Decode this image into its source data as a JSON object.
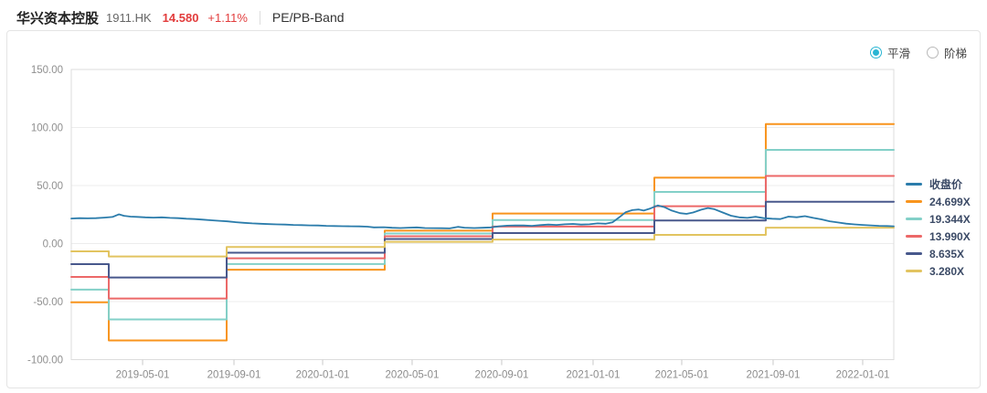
{
  "header": {
    "title": "华兴资本控股",
    "ticker": "1911.HK",
    "price": "14.580",
    "change": "+1.11%",
    "view_label": "PE/PB-Band"
  },
  "controls": {
    "smooth_label": "平滑",
    "step_label": "阶梯",
    "selected": "平滑",
    "active_color": "#29b5d3"
  },
  "legend": {
    "items": [
      {
        "label": "收盘价",
        "color": "#2b7cab"
      },
      {
        "label": "24.699X",
        "color": "#f8941d"
      },
      {
        "label": "19.344X",
        "color": "#83d0c8"
      },
      {
        "label": "13.990X",
        "color": "#ec6868"
      },
      {
        "label": "8.635X",
        "color": "#48588c"
      },
      {
        "label": "3.280X",
        "color": "#e2c460"
      }
    ]
  },
  "chart_data": {
    "type": "line",
    "title": "PE/PB-Band",
    "grid": true,
    "legend_position": "right",
    "y_axis": {
      "min": -100,
      "max": 150,
      "tick_values": [
        150,
        100,
        50,
        0,
        -50,
        -100
      ],
      "tick_labels": [
        "150.00",
        "100.00",
        "50.00",
        "0.00",
        "-50.00",
        "-100.00"
      ]
    },
    "x_axis": {
      "ticks": [
        {
          "label": "2019-05-01",
          "pos": 8.67
        },
        {
          "label": "2019-09-01",
          "pos": 19.78
        },
        {
          "label": "2020-01-01",
          "pos": 30.56
        },
        {
          "label": "2020-05-01",
          "pos": 41.44
        },
        {
          "label": "2020-09-01",
          "pos": 52.33
        },
        {
          "label": "2021-01-01",
          "pos": 63.44
        },
        {
          "label": "2021-05-01",
          "pos": 74.22
        },
        {
          "label": "2021-09-01",
          "pos": 85.33
        },
        {
          "label": "2022-01-01",
          "pos": 96.22
        }
      ]
    },
    "bands": {
      "segment_bounds_pct": [
        0,
        4.56,
        18.89,
        38.11,
        51.22,
        70.89,
        84.44,
        100
      ],
      "series": [
        {
          "name": "24.699X",
          "color": "#f8941d",
          "values": [
            -50.6,
            -83.5,
            -22.5,
            11.1,
            25.9,
            56.8,
            103.0
          ]
        },
        {
          "name": "19.344X",
          "color": "#83d0c8",
          "values": [
            -39.7,
            -65.4,
            -17.6,
            8.7,
            20.3,
            44.5,
            80.7
          ]
        },
        {
          "name": "13.990X",
          "color": "#ec6868",
          "values": [
            -28.7,
            -47.3,
            -12.7,
            6.3,
            14.7,
            32.2,
            58.3
          ]
        },
        {
          "name": "8.635X",
          "color": "#48588c",
          "values": [
            -17.7,
            -29.2,
            -7.9,
            3.9,
            9.1,
            19.9,
            36.0
          ]
        },
        {
          "name": "3.280X",
          "color": "#e2c460",
          "values": [
            -6.7,
            -11.1,
            -3.0,
            1.5,
            3.4,
            7.5,
            13.7
          ]
        }
      ]
    },
    "close_series": {
      "name": "收盘价",
      "color": "#2b7cab",
      "points": [
        [
          0,
          21.6
        ],
        [
          1,
          21.9
        ],
        [
          2,
          21.7
        ],
        [
          3,
          21.9
        ],
        [
          4,
          22.4
        ],
        [
          5,
          22.9
        ],
        [
          5.8,
          25.2
        ],
        [
          6.4,
          23.9
        ],
        [
          7.2,
          23.2
        ],
        [
          8,
          23.0
        ],
        [
          9,
          22.6
        ],
        [
          10,
          22.4
        ],
        [
          11,
          22.6
        ],
        [
          12,
          22.1
        ],
        [
          13,
          21.9
        ],
        [
          14,
          21.4
        ],
        [
          15,
          21.1
        ],
        [
          16,
          20.6
        ],
        [
          17,
          20.1
        ],
        [
          18,
          19.6
        ],
        [
          19,
          19.1
        ],
        [
          20,
          18.4
        ],
        [
          21,
          17.9
        ],
        [
          22,
          17.4
        ],
        [
          23,
          17.1
        ],
        [
          24,
          16.8
        ],
        [
          25,
          16.5
        ],
        [
          26,
          16.4
        ],
        [
          27,
          16.1
        ],
        [
          28,
          15.9
        ],
        [
          29,
          15.7
        ],
        [
          30,
          15.6
        ],
        [
          31,
          15.3
        ],
        [
          32,
          15.1
        ],
        [
          33,
          15.0
        ],
        [
          34,
          14.9
        ],
        [
          35,
          14.8
        ],
        [
          36,
          14.6
        ],
        [
          36.8,
          13.9
        ],
        [
          38,
          14.1
        ],
        [
          39,
          13.6
        ],
        [
          40,
          13.4
        ],
        [
          41,
          13.7
        ],
        [
          42,
          13.9
        ],
        [
          43,
          13.4
        ],
        [
          44,
          13.3
        ],
        [
          45,
          13.2
        ],
        [
          46,
          13.1
        ],
        [
          47,
          14.4
        ],
        [
          47.8,
          13.7
        ],
        [
          49,
          13.4
        ],
        [
          50,
          13.6
        ],
        [
          51,
          13.9
        ],
        [
          52,
          14.9
        ],
        [
          53,
          15.4
        ],
        [
          54,
          15.7
        ],
        [
          55,
          15.6
        ],
        [
          56,
          15.3
        ],
        [
          57,
          15.9
        ],
        [
          58,
          16.4
        ],
        [
          59,
          16.1
        ],
        [
          60,
          16.6
        ],
        [
          61,
          16.9
        ],
        [
          62,
          16.4
        ],
        [
          63,
          16.6
        ],
        [
          64,
          17.4
        ],
        [
          65,
          17.1
        ],
        [
          65.8,
          18.3
        ],
        [
          66.6,
          22.5
        ],
        [
          67.4,
          27.0
        ],
        [
          68.2,
          28.8
        ],
        [
          69,
          29.4
        ],
        [
          69.6,
          28.4
        ],
        [
          70.4,
          30.2
        ],
        [
          71.3,
          32.8
        ],
        [
          72.1,
          31.4
        ],
        [
          73,
          28.4
        ],
        [
          74,
          26.2
        ],
        [
          74.8,
          25.6
        ],
        [
          75.6,
          26.8
        ],
        [
          76.6,
          29.2
        ],
        [
          77.4,
          30.6
        ],
        [
          78.2,
          29.6
        ],
        [
          79.2,
          26.8
        ],
        [
          80.2,
          24.0
        ],
        [
          81.2,
          22.6
        ],
        [
          82.2,
          22.1
        ],
        [
          83.2,
          23.1
        ],
        [
          84.2,
          21.9
        ],
        [
          85.2,
          21.4
        ],
        [
          86.2,
          21.1
        ],
        [
          87.2,
          23.2
        ],
        [
          88.2,
          22.7
        ],
        [
          89.2,
          23.6
        ],
        [
          90.2,
          22.1
        ],
        [
          91.2,
          20.9
        ],
        [
          92.2,
          19.2
        ],
        [
          93.2,
          18.2
        ],
        [
          94.2,
          17.2
        ],
        [
          95.2,
          16.5
        ],
        [
          96.2,
          16.1
        ],
        [
          97.2,
          15.7
        ],
        [
          98.2,
          15.3
        ],
        [
          99.2,
          15.1
        ],
        [
          100,
          14.9
        ]
      ]
    }
  }
}
